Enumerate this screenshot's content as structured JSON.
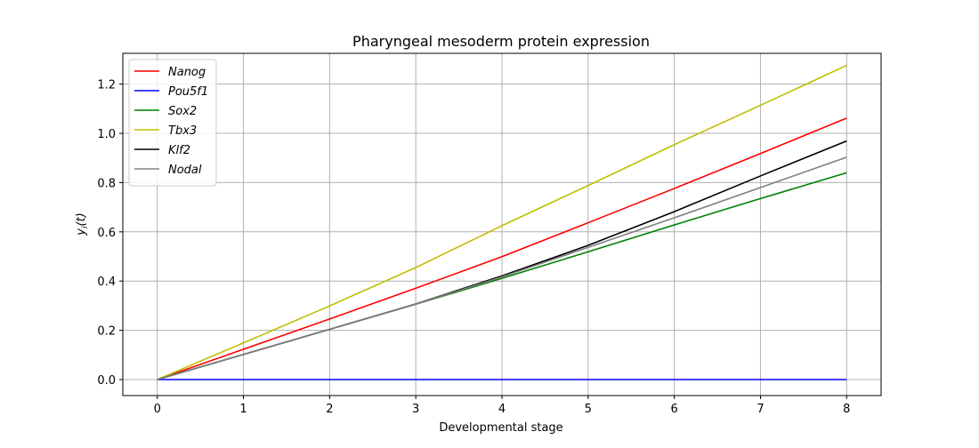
{
  "chart_data": {
    "type": "line",
    "title": "Pharyngeal mesoderm protein expression",
    "xlabel": "Developmental stage",
    "ylabel": "y_i(t)",
    "xlim": [
      -0.4,
      8.4
    ],
    "ylim": [
      -0.065,
      1.325
    ],
    "xticks": [
      0,
      1,
      2,
      3,
      4,
      5,
      6,
      7,
      8
    ],
    "yticks": [
      0.0,
      0.2,
      0.4,
      0.6,
      0.8,
      1.0,
      1.2
    ],
    "ytick_labels": [
      "0.0",
      "0.2",
      "0.4",
      "0.6",
      "0.8",
      "1.0",
      "1.2"
    ],
    "grid": true,
    "legend_position": "upper-left",
    "x": [
      0,
      1,
      2,
      3,
      4,
      5,
      6,
      7,
      8
    ],
    "series": [
      {
        "name": "Nanog",
        "color": "#ff0000",
        "values": [
          0,
          0.123,
          0.246,
          0.371,
          0.499,
          0.637,
          0.776,
          0.918,
          1.062
        ]
      },
      {
        "name": "Pou5f1",
        "color": "#0000ff",
        "values": [
          0,
          0,
          0,
          0,
          0,
          0,
          0,
          0,
          0
        ]
      },
      {
        "name": "Sox2",
        "color": "#008000",
        "values": [
          0,
          0.102,
          0.204,
          0.306,
          0.411,
          0.519,
          0.628,
          0.735,
          0.84
        ]
      },
      {
        "name": "Tbx3",
        "color": "#bfbf00",
        "values": [
          0,
          0.149,
          0.299,
          0.455,
          0.625,
          0.788,
          0.954,
          1.114,
          1.276
        ]
      },
      {
        "name": "Klf2",
        "color": "#000000",
        "values": [
          0,
          0.102,
          0.204,
          0.307,
          0.421,
          0.545,
          0.682,
          0.827,
          0.969
        ]
      },
      {
        "name": "Nodal",
        "color": "#808080",
        "values": [
          0,
          0.102,
          0.204,
          0.306,
          0.417,
          0.537,
          0.657,
          0.78,
          0.903
        ]
      }
    ]
  }
}
